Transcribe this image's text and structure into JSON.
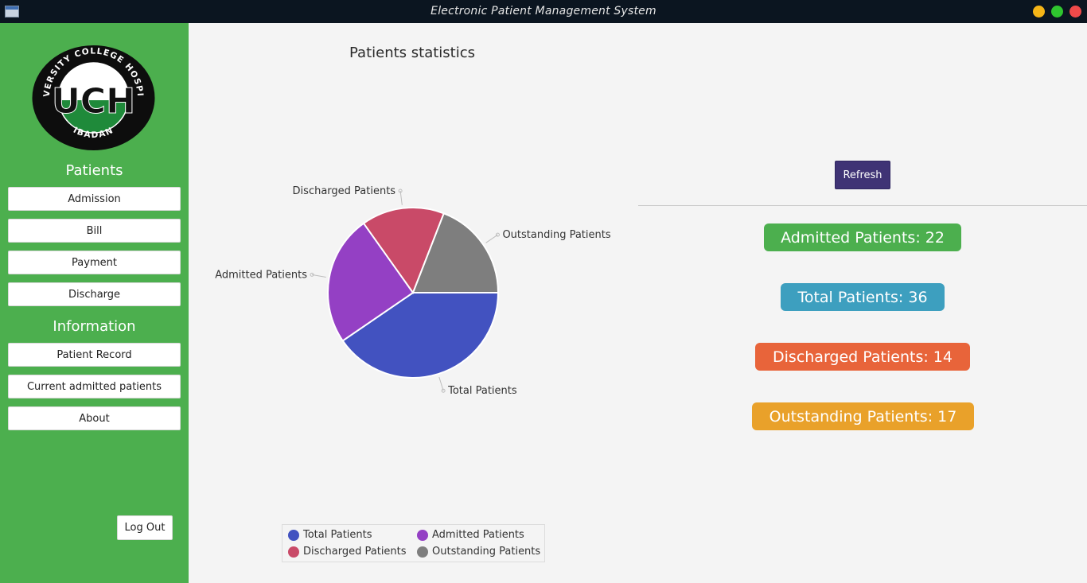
{
  "window": {
    "title": "Electronic Patient Management System"
  },
  "sidebar": {
    "logo": {
      "text_top": "UNIVERSITY COLLEGE HOSPITAL",
      "text_bottom": "IBADAN",
      "monogram": "UCH"
    },
    "patients_title": "Patients",
    "patients_items": [
      "Admission",
      "Bill",
      "Payment",
      "Discharge"
    ],
    "information_title": "Information",
    "information_items": [
      "Patient Record",
      "Current admitted patients",
      "About"
    ],
    "logout_label": "Log Out"
  },
  "main": {
    "refresh_label": "Refresh",
    "stats": {
      "admitted": "Admitted Patients: 22",
      "total": "Total Patients: 36",
      "discharged": "Discharged Patients: 14",
      "outstanding": "Outstanding Patients: 17"
    }
  },
  "colors": {
    "sidebar": "#4caf4e",
    "total": "#4252c0",
    "admitted": "#9440c4",
    "discharged": "#c94a68",
    "outstanding": "#7e7e7e",
    "stat_admitted": "#4caf4e",
    "stat_total": "#3d9fbf",
    "stat_discharged": "#e8643a",
    "stat_outstanding": "#e9a12a",
    "refresh": "#3f3375"
  },
  "chart_data": {
    "type": "pie",
    "title": "Patients statistics",
    "legend_position": "bottom",
    "categories": [
      "Total Patients",
      "Admitted Patients",
      "Discharged Patients",
      "Outstanding Patients"
    ],
    "values": [
      36,
      22,
      14,
      17
    ]
  }
}
